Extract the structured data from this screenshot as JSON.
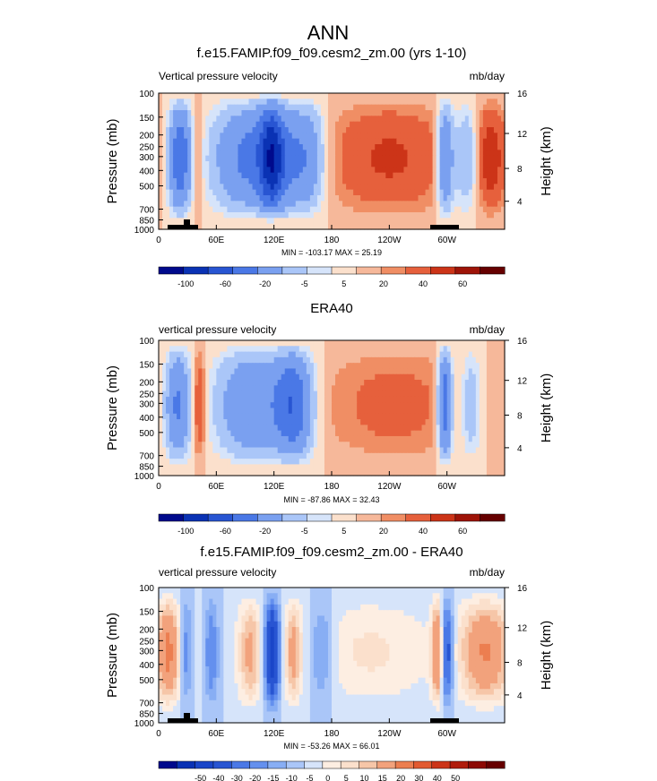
{
  "figure": {
    "title": "ANN"
  },
  "colors": {
    "div12": [
      "#000a8c",
      "#0a32b4",
      "#2855d2",
      "#4a78e6",
      "#7aa0f0",
      "#aac6f8",
      "#d6e4fa",
      "#fbe0cc",
      "#f6b89a",
      "#f08e64",
      "#e6603c",
      "#cc3418",
      "#9e1408",
      "#660000"
    ],
    "div16": [
      "#000a8c",
      "#0a32b4",
      "#1a46c8",
      "#2855d2",
      "#4a78e6",
      "#6490ee",
      "#88aef4",
      "#aac6f8",
      "#d6e4fa",
      "#fdeee2",
      "#fbe0cc",
      "#f6c6a8",
      "#f2a27c",
      "#ec7e50",
      "#e25a30",
      "#cc3418",
      "#b01c0c",
      "#8c0a04",
      "#660000"
    ]
  },
  "chart_data": [
    {
      "type": "heatmap",
      "title": "f.e15.FAMIP.f09_f09.cesm2_zm.00 (yrs 1-10)",
      "left_label": "Vertical pressure velocity",
      "units": "mb/day",
      "ylabel": "Pressure (mb)",
      "y2label": "Height (km)",
      "yticks": [
        "100",
        "150",
        "200",
        "250",
        "300",
        "400",
        "500",
        "700",
        "850",
        "1000"
      ],
      "y2ticks": [
        "16",
        "12",
        "8",
        "4"
      ],
      "xticks": [
        "0",
        "60E",
        "120E",
        "180",
        "120W",
        "60W"
      ],
      "stats": "MIN = -103.17   MAX =  25.19",
      "colorbar_labels": [
        "-100",
        "-60",
        "-20",
        "-5",
        "5",
        "20",
        "40",
        "60"
      ],
      "topography": true
    },
    {
      "type": "heatmap",
      "title": "ERA40",
      "left_label": "vertical pressure velocity",
      "units": "mb/day",
      "ylabel": "Pressure (mb)",
      "y2label": "Height (km)",
      "yticks": [
        "100",
        "150",
        "200",
        "250",
        "300",
        "400",
        "500",
        "700",
        "850",
        "1000"
      ],
      "y2ticks": [
        "16",
        "12",
        "8",
        "4"
      ],
      "xticks": [
        "0",
        "60E",
        "120E",
        "180",
        "120W",
        "60W"
      ],
      "stats": "MIN = -87.86   MAX =  32.43",
      "colorbar_labels": [
        "-100",
        "-60",
        "-20",
        "-5",
        "5",
        "20",
        "40",
        "60"
      ],
      "topography": false
    },
    {
      "type": "heatmap",
      "title": "f.e15.FAMIP.f09_f09.cesm2_zm.00 - ERA40",
      "left_label": "vertical pressure velocity",
      "units": "mb/day",
      "ylabel": "Pressure (mb)",
      "y2label": "Height (km)",
      "yticks": [
        "100",
        "150",
        "200",
        "250",
        "300",
        "400",
        "500",
        "700",
        "850",
        "1000"
      ],
      "y2ticks": [
        "16",
        "12",
        "8",
        "4"
      ],
      "xticks": [
        "0",
        "60E",
        "120E",
        "180",
        "120W",
        "60W"
      ],
      "stats": "MIN = -53.26   MAX =  66.01",
      "colorbar_labels": [
        "-50",
        "-40",
        "-30",
        "-20",
        "-15",
        "-10",
        "-5",
        "0",
        "5",
        "10",
        "15",
        "20",
        "30",
        "40",
        "50"
      ],
      "topography": true
    }
  ]
}
